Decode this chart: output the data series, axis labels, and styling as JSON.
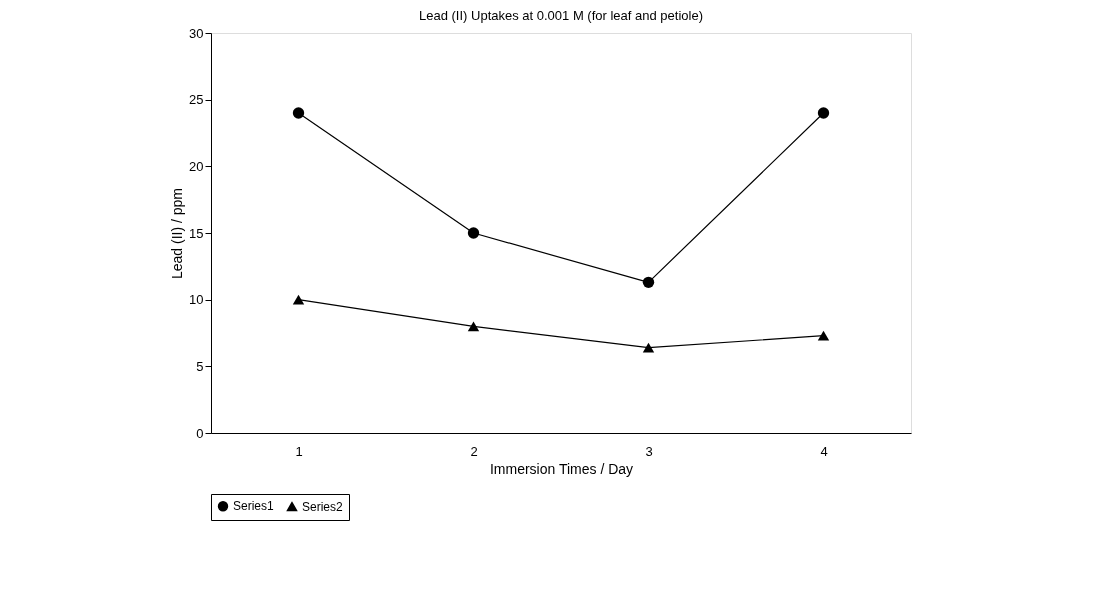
{
  "chart_data": {
    "type": "line",
    "title": "Lead (II) Uptakes at 0.001 M (for leaf and petiole)",
    "xlabel": "Immersion Times / Day",
    "ylabel": "Lead (II) / ppm",
    "categories": [
      "1",
      "2",
      "3",
      "4"
    ],
    "series": [
      {
        "name": "Series1",
        "color": "#000000",
        "marker": "circle",
        "values": [
          24,
          15,
          11.3,
          24
        ]
      },
      {
        "name": "Series2",
        "color": "#000000",
        "marker": "triangle",
        "values": [
          10,
          8,
          6.4,
          7.3
        ]
      }
    ],
    "ylim": [
      0,
      30
    ],
    "yticks": [
      0,
      5,
      10,
      15,
      20,
      25,
      30
    ],
    "grid": false,
    "legend": "bottom",
    "line_style": "solid"
  }
}
